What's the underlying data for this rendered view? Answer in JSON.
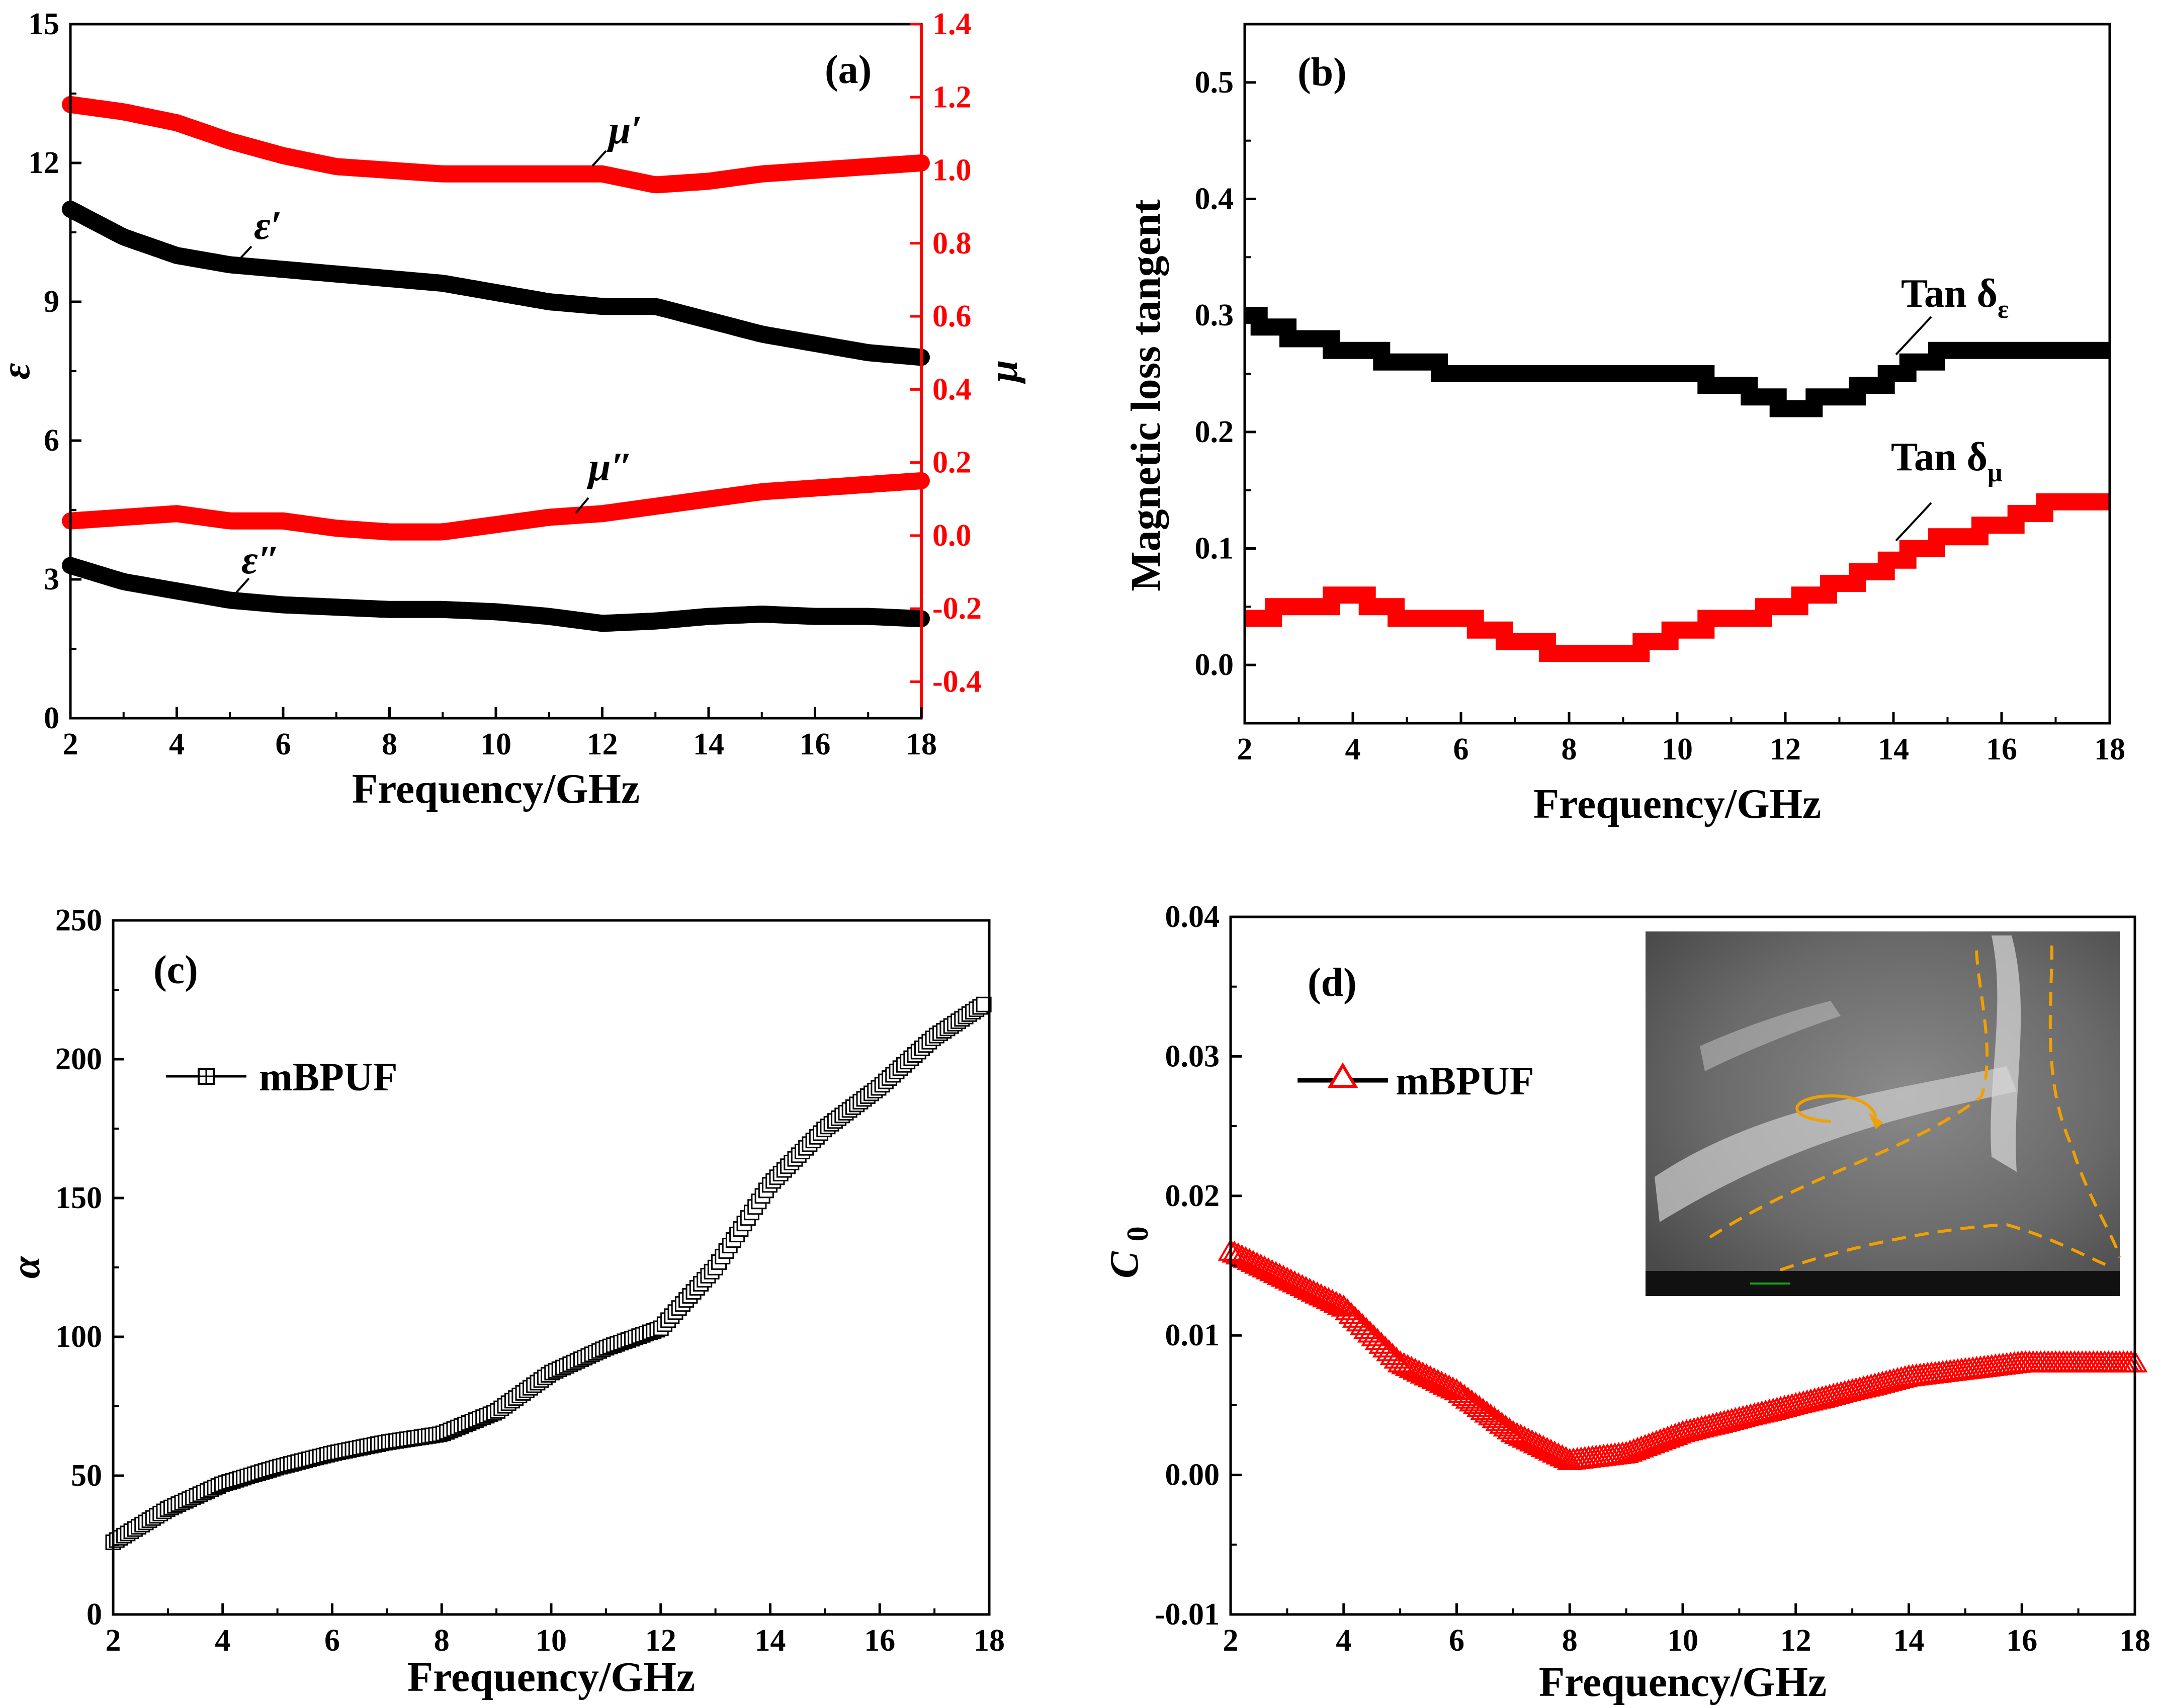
{
  "chart_data": [
    {
      "panel": "(a)",
      "type": "line",
      "xlabel": "Frequency/GHz",
      "ylabel": "ε",
      "y2label": "μ",
      "xlim": [
        2,
        18
      ],
      "ylim": [
        0,
        15
      ],
      "y2lim": [
        -0.5,
        1.4
      ],
      "xticks": [
        2,
        4,
        6,
        8,
        10,
        12,
        14,
        16,
        18
      ],
      "yticks": [
        0,
        3,
        6,
        9,
        12,
        15
      ],
      "y2ticks": [
        -0.4,
        -0.2,
        0.0,
        0.2,
        0.4,
        0.6,
        0.8,
        1.0,
        1.2,
        1.4
      ],
      "y2ticklabels": [
        "-0.4",
        "-0.2",
        "0.0",
        "0.2",
        "0.4",
        "0.6",
        "0.8",
        "1.0",
        "1.2",
        "1.4"
      ],
      "x": [
        2,
        3,
        4,
        5,
        6,
        7,
        8,
        9,
        10,
        11,
        12,
        13,
        14,
        15,
        16,
        17,
        18
      ],
      "series": [
        {
          "name": "μ′",
          "axis": "right",
          "color": "#ff0000",
          "values": [
            1.18,
            1.16,
            1.13,
            1.08,
            1.04,
            1.01,
            1.0,
            0.99,
            0.99,
            0.99,
            0.99,
            0.96,
            0.97,
            0.99,
            1.0,
            1.01,
            1.02
          ]
        },
        {
          "name": "ε′",
          "axis": "left",
          "color": "#000000",
          "values": [
            11.0,
            10.4,
            10.0,
            9.8,
            9.7,
            9.6,
            9.5,
            9.4,
            9.2,
            9.0,
            8.9,
            8.9,
            8.6,
            8.3,
            8.1,
            7.9,
            7.8
          ]
        },
        {
          "name": "μ″",
          "axis": "right",
          "color": "#ff0000",
          "values": [
            0.04,
            0.05,
            0.06,
            0.04,
            0.04,
            0.02,
            0.01,
            0.01,
            0.03,
            0.05,
            0.06,
            0.08,
            0.1,
            0.12,
            0.13,
            0.14,
            0.15
          ]
        },
        {
          "name": "ε″",
          "axis": "left",
          "color": "#000000",
          "values": [
            3.3,
            2.95,
            2.75,
            2.55,
            2.45,
            2.4,
            2.35,
            2.35,
            2.3,
            2.2,
            2.05,
            2.1,
            2.2,
            2.25,
            2.2,
            2.2,
            2.15
          ]
        }
      ],
      "annotations": {
        "mu1": "μ′",
        "eps1": "ε′",
        "mu2": "μ″",
        "eps2": "ε″"
      }
    },
    {
      "panel": "(b)",
      "type": "line",
      "xlabel": "Frequency/GHz",
      "ylabel": "Magnetic loss tangent",
      "xlim": [
        2,
        18
      ],
      "ylim": [
        -0.05,
        0.55
      ],
      "xticks": [
        2,
        4,
        6,
        8,
        10,
        12,
        14,
        16,
        18
      ],
      "yticks": [
        0.0,
        0.1,
        0.2,
        0.3,
        0.4,
        0.5
      ],
      "yticklabels": [
        "0.0",
        "0.1",
        "0.2",
        "0.3",
        "0.4",
        "0.5"
      ],
      "x": [
        2,
        3,
        4,
        5,
        6,
        7,
        8,
        9,
        10,
        11,
        12,
        13,
        14,
        15,
        16,
        17,
        18
      ],
      "series": [
        {
          "name": "Tan δε",
          "color": "#000000",
          "values": [
            0.3,
            0.28,
            0.27,
            0.26,
            0.25,
            0.25,
            0.25,
            0.25,
            0.25,
            0.24,
            0.22,
            0.23,
            0.25,
            0.27,
            0.27,
            0.27,
            0.27
          ]
        },
        {
          "name": "Tan δμ",
          "color": "#ff0000",
          "values": [
            0.04,
            0.05,
            0.06,
            0.04,
            0.04,
            0.02,
            0.01,
            0.01,
            0.03,
            0.04,
            0.05,
            0.07,
            0.09,
            0.11,
            0.12,
            0.14,
            0.14
          ]
        }
      ],
      "annotations": {
        "tan_eps": "Tan δ",
        "tan_eps_sub": "ε",
        "tan_mu": "Tan δ",
        "tan_mu_sub": "μ"
      }
    },
    {
      "panel": "(c)",
      "type": "scatter",
      "xlabel": "Frequency/GHz",
      "ylabel": "α",
      "xlim": [
        2,
        18
      ],
      "ylim": [
        0,
        250
      ],
      "xticks": [
        2,
        4,
        6,
        8,
        10,
        12,
        14,
        16,
        18
      ],
      "yticks": [
        0,
        50,
        100,
        150,
        200,
        250
      ],
      "legend": "mBPUF",
      "x": [
        2,
        3,
        4,
        5,
        6,
        7,
        8,
        9,
        10,
        11,
        12,
        13,
        14,
        15,
        16,
        17,
        18
      ],
      "series": [
        {
          "name": "mBPUF",
          "color": "#000000",
          "values": [
            26,
            38,
            47,
            53,
            58,
            62,
            65,
            73,
            87,
            96,
            103,
            125,
            155,
            175,
            190,
            208,
            221
          ]
        }
      ]
    },
    {
      "panel": "(d)",
      "type": "scatter",
      "xlabel": "Frequency/GHz",
      "ylabel": "C0",
      "xlim": [
        2,
        18
      ],
      "ylim": [
        -0.01,
        0.04
      ],
      "xticks": [
        2,
        4,
        6,
        8,
        10,
        12,
        14,
        16,
        18
      ],
      "yticks": [
        -0.01,
        0.0,
        0.01,
        0.02,
        0.03,
        0.04
      ],
      "yticklabels": [
        "-0.01",
        "0.00",
        "0.01",
        "0.02",
        "0.03",
        "0.04"
      ],
      "legend": "mBPUF",
      "x": [
        2,
        3,
        4,
        5,
        6,
        7,
        8,
        9,
        10,
        11,
        12,
        13,
        14,
        15,
        16,
        17,
        18
      ],
      "series": [
        {
          "name": "mBPUF",
          "color": "#ff0000",
          "values": [
            0.016,
            0.014,
            0.012,
            0.008,
            0.006,
            0.003,
            0.001,
            0.0015,
            0.003,
            0.004,
            0.005,
            0.006,
            0.007,
            0.0075,
            0.008,
            0.008,
            0.008
          ]
        }
      ],
      "inset": "sem-micrograph"
    }
  ],
  "colors": {
    "black": "#000000",
    "red": "#ff0000",
    "inset_bg": "#6b6b6b",
    "inset_dash": "#f0a000"
  }
}
